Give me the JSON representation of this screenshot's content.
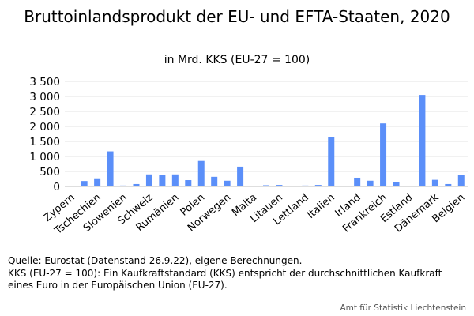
{
  "chart_data": {
    "type": "bar",
    "title": "Bruttoinlandsprodukt der EU- und EFTA-Staaten, 2020",
    "subtitle": "in Mrd. KKS (EU-27 = 100)",
    "xlabel": "",
    "ylabel": "",
    "ylim": [
      0,
      3500
    ],
    "yticks": [
      0,
      500,
      1000,
      1500,
      2000,
      2500,
      3000,
      3500
    ],
    "ytick_labels": [
      "0",
      "500",
      "1 000",
      "1 500",
      "2 000",
      "2 500",
      "3 000",
      "3 500"
    ],
    "grid": true,
    "legend": "none",
    "bar_color": "#5b8ff9",
    "categories": [
      "Zypern",
      "",
      "Tschechien",
      "",
      "Slowenien",
      "",
      "Schweiz",
      "",
      "Rumänien",
      "",
      "Polen",
      "",
      "Norwegen",
      "",
      "Malta",
      "",
      "Litauen",
      "",
      "Lettland",
      "",
      "Italien",
      "",
      "Irland",
      "",
      "Frankreich",
      "",
      "Estland",
      "",
      "Dänemark",
      "",
      "Belgien"
    ],
    "values": [
      0,
      180,
      270,
      1170,
      30,
      80,
      400,
      370,
      400,
      210,
      850,
      320,
      190,
      660,
      0,
      40,
      50,
      0,
      30,
      50,
      1650,
      0,
      290,
      190,
      2100,
      150,
      0,
      3050,
      220,
      80,
      380
    ]
  },
  "footnote": {
    "line1": "Quelle: Eurostat (Datenstand 26.9.22), eigene Berechnungen.",
    "line2": "KKS (EU-27 = 100): Ein Kaufkraftstandard (KKS) entspricht der durchschnittlichen Kaufkraft eines Euro in der Europäischen Union (EU-27)."
  },
  "credit": "Amt für Statistik Liechtenstein"
}
